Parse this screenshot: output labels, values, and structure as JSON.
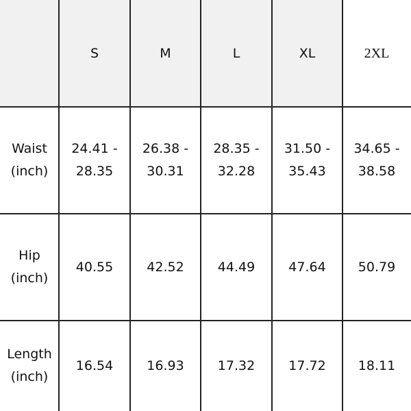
{
  "headers": [
    "",
    "S",
    "M",
    "L",
    "XL",
    "2XL"
  ],
  "rows": [
    {
      "label": "Waist\n(inch)",
      "values": [
        "24.41 -\n28.35",
        "26.38 -\n30.31",
        "28.35 -\n32.28",
        "31.50 -\n35.43",
        "34.65 -\n38.58"
      ]
    },
    {
      "label": "Hip\n(inch)",
      "values": [
        "40.55",
        "42.52",
        "44.49",
        "47.64",
        "50.79"
      ]
    },
    {
      "label": "Length\n(inch)",
      "values": [
        "16.54",
        "16.93",
        "17.32",
        "17.72",
        "18.11"
      ]
    }
  ],
  "colors": {
    "header_bg": "#f1f1f1",
    "border": "#222222"
  }
}
